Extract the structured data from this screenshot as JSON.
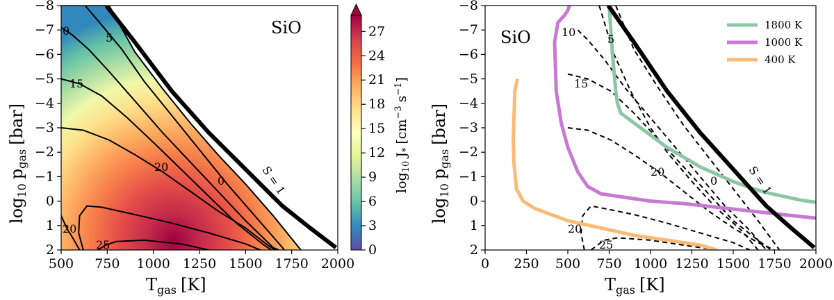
{
  "chart_data": [
    {
      "type": "contourf",
      "panel": "left",
      "title": "SiO",
      "annotation": "SiO",
      "xlabel": "T",
      "xlabel_sub": "gas",
      "xlabel_unit": "[K]",
      "ylabel": "log",
      "ylabel_sub1": "10",
      "ylabel_mid": "p",
      "ylabel_sub2": "gas",
      "ylabel_unit": "[bar]",
      "xlim": [
        500,
        2000
      ],
      "ylim": [
        2,
        -8
      ],
      "xticks": [
        500,
        750,
        1000,
        1250,
        1500,
        1750,
        2000
      ],
      "yticks": [
        -8,
        -7,
        -6,
        -5,
        -4,
        -3,
        -2,
        -1,
        0,
        1,
        2
      ],
      "colorbar": {
        "label": "log10 J* [cm^-3 s^-1]",
        "label_main": "log",
        "label_sub": "10",
        "label_j": "J",
        "label_star": "*",
        "label_unit": "[cm",
        "label_exp1": "−3",
        "label_s": "s",
        "label_exp2": "−1",
        "label_close": "]",
        "min": 0,
        "max": 29,
        "ticks": [
          0,
          3,
          6,
          9,
          12,
          15,
          18,
          21,
          24,
          27
        ],
        "extend": "max",
        "colormap": "Spectral_r"
      },
      "contour_lines": [
        {
          "level": 0,
          "label": "0"
        },
        {
          "level": 5,
          "label": "5"
        },
        {
          "level": 15,
          "label": "15"
        },
        {
          "level": 20,
          "label": "20"
        },
        {
          "level": 25,
          "label": "25"
        }
      ],
      "contour_labels": [
        "0",
        "5",
        "15",
        "20",
        "20",
        "25",
        "0"
      ],
      "saturation_curve": {
        "label": "S = 1",
        "points": [
          [
            745,
            -8
          ],
          [
            900,
            -6.5
          ],
          [
            1100,
            -4.5
          ],
          [
            1300,
            -2.8
          ],
          [
            1500,
            -1.3
          ],
          [
            1700,
            0.2
          ],
          [
            1850,
            1.1
          ],
          [
            1990,
            1.9
          ]
        ]
      },
      "nucleation_boundary": [
        [
          500,
          -8
        ],
        [
          760,
          -8
        ],
        [
          900,
          -6.1
        ],
        [
          1050,
          -4.6
        ],
        [
          1200,
          -3.2
        ],
        [
          1350,
          -1.9
        ],
        [
          1500,
          -0.7
        ],
        [
          1650,
          0.6
        ],
        [
          1800,
          2
        ]
      ]
    },
    {
      "type": "line",
      "panel": "right",
      "annotation": "SiO",
      "xlabel": "T",
      "xlabel_sub": "gas",
      "xlabel_unit": "[K]",
      "ylabel": "log",
      "ylabel_sub1": "10",
      "ylabel_mid": "p",
      "ylabel_sub2": "gas",
      "ylabel_unit": "[bar]",
      "xlim": [
        0,
        2000
      ],
      "ylim": [
        2,
        -8
      ],
      "xticks": [
        0,
        250,
        500,
        750,
        1000,
        1250,
        1500,
        1750,
        2000
      ],
      "yticks": [
        -8,
        -7,
        -6,
        -5,
        -4,
        -3,
        -2,
        -1,
        0,
        1,
        2
      ],
      "legend": {
        "position": "top-right",
        "entries": [
          "1800 K",
          "1000 K",
          "400 K"
        ]
      },
      "contour_labels": [
        "10",
        "5",
        "15",
        "20",
        "0",
        "20",
        "25"
      ],
      "saturation_curve": {
        "label": "S = 1",
        "points": [
          [
            745,
            -8
          ],
          [
            900,
            -6.5
          ],
          [
            1100,
            -4.5
          ],
          [
            1300,
            -2.8
          ],
          [
            1500,
            -1.3
          ],
          [
            1700,
            0.2
          ],
          [
            1850,
            1.1
          ],
          [
            1990,
            1.9
          ]
        ]
      },
      "series": [
        {
          "name": "1800 K",
          "color": "#8dc6a5",
          "x": [
            750,
            770,
            790,
            800,
            820,
            900,
            1000,
            1100,
            1200,
            1300,
            1400,
            1500,
            1600,
            1700,
            1800,
            1900,
            2000
          ],
          "y": [
            -8,
            -6,
            -4.5,
            -4,
            -3.6,
            -3.2,
            -2.7,
            -2.2,
            -1.8,
            -1.4,
            -1.1,
            -0.8,
            -0.55,
            -0.35,
            -0.2,
            -0.05,
            0.05
          ]
        },
        {
          "name": "1000 K",
          "color": "#c67bd0",
          "x": [
            510,
            500,
            480,
            440,
            420,
            430,
            460,
            500,
            560,
            620,
            700,
            800,
            900,
            1000,
            1200,
            1400,
            1600,
            1800,
            2000
          ],
          "y": [
            -8,
            -7.8,
            -7.6,
            -7.3,
            -6.5,
            -4.5,
            -3.2,
            -2.2,
            -1.2,
            -0.6,
            -0.3,
            -0.2,
            -0.1,
            0.0,
            0.1,
            0.25,
            0.4,
            0.55,
            0.7
          ]
        },
        {
          "name": "400 K",
          "color": "#fbbb76",
          "x": [
            195,
            180,
            175,
            170,
            175,
            190,
            230,
            300,
            400,
            500,
            700,
            900,
            1100,
            1300,
            1400
          ],
          "y": [
            -5,
            -4.5,
            -3.5,
            -2.5,
            -1.5,
            -0.5,
            0,
            0.3,
            0.55,
            0.8,
            1.1,
            1.4,
            1.6,
            1.8,
            2
          ]
        }
      ],
      "dashed_contours": [
        {
          "label": "5",
          "points": [
            [
              690,
              -8
            ],
            [
              780,
              -6
            ],
            [
              880,
              -4.5
            ],
            [
              1000,
              -3
            ],
            [
              1100,
              -2
            ],
            [
              1250,
              -0.8
            ],
            [
              1400,
              0.3
            ],
            [
              1550,
              1.2
            ],
            [
              1650,
              2
            ]
          ]
        },
        {
          "label": "10",
          "points": [
            [
              560,
              -7.0
            ],
            [
              620,
              -6.6
            ],
            [
              720,
              -5.8
            ],
            [
              850,
              -4.6
            ],
            [
              1000,
              -3.4
            ],
            [
              1150,
              -2.2
            ],
            [
              1300,
              -1
            ],
            [
              1450,
              0.2
            ],
            [
              1600,
              1.2
            ],
            [
              1700,
              2
            ]
          ]
        },
        {
          "label": "15",
          "points": [
            [
              500,
              -5.2
            ],
            [
              620,
              -5.0
            ],
            [
              760,
              -4.5
            ],
            [
              900,
              -3.6
            ],
            [
              1050,
              -2.5
            ],
            [
              1200,
              -1.4
            ],
            [
              1350,
              -0.3
            ],
            [
              1500,
              0.8
            ],
            [
              1650,
              1.6
            ],
            [
              1730,
              2
            ]
          ]
        },
        {
          "label": "20",
          "points": [
            [
              500,
              -3.0
            ],
            [
              620,
              -2.9
            ],
            [
              760,
              -2.5
            ],
            [
              900,
              -1.9
            ],
            [
              1050,
              -1.2
            ],
            [
              1200,
              -0.4
            ],
            [
              1350,
              0.4
            ],
            [
              1500,
              1.1
            ],
            [
              1650,
              1.7
            ],
            [
              1750,
              2
            ]
          ]
        },
        {
          "label": "25",
          "points": [
            [
              600,
              2
            ],
            [
              580,
              1.3
            ],
            [
              590,
              0.6
            ],
            [
              640,
              0.2
            ],
            [
              720,
              0.3
            ],
            [
              900,
              0.55
            ],
            [
              1100,
              0.9
            ],
            [
              1300,
              1.3
            ],
            [
              1500,
              1.7
            ],
            [
              1600,
              2
            ]
          ]
        },
        {
          "label": "25b",
          "points": [
            [
              640,
              2
            ],
            [
              680,
              1.8
            ],
            [
              720,
              1.6
            ],
            [
              800,
              1.5
            ],
            [
              1000,
              1.6
            ],
            [
              1200,
              1.8
            ],
            [
              1400,
              2
            ]
          ]
        },
        {
          "label": "0",
          "points": [
            [
              790,
              -8
            ],
            [
              900,
              -6.2
            ],
            [
              1050,
              -4.6
            ],
            [
              1200,
              -3.1
            ],
            [
              1350,
              -1.8
            ],
            [
              1500,
              -0.5
            ],
            [
              1650,
              0.8
            ],
            [
              1780,
              2
            ]
          ]
        }
      ]
    }
  ]
}
